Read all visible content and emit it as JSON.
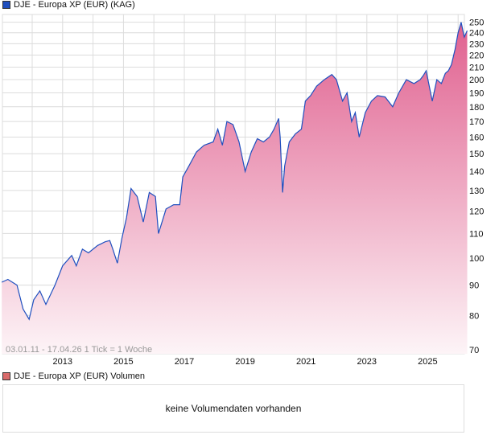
{
  "chart_data": {
    "type": "area",
    "title": "DJE - Europa XP (EUR) (KAG)",
    "series_color": "#1f4fbf",
    "fill_top": "#e0608f",
    "fill_bottom": "#fdf4f7",
    "y_scale": "log",
    "ylim": [
      70,
      255
    ],
    "yticks": [
      70,
      80,
      90,
      100,
      110,
      120,
      130,
      140,
      150,
      160,
      170,
      180,
      190,
      200,
      210,
      220,
      230,
      240,
      250
    ],
    "xlim": [
      2011.0,
      2026.3
    ],
    "xticks": [
      2013,
      2015,
      2017,
      2019,
      2021,
      2023,
      2025
    ],
    "grid": true,
    "range_label": "03.01.11 - 17.04.26   1 Tick = 1 Woche",
    "x": [
      2011.0,
      2011.2,
      2011.5,
      2011.7,
      2011.9,
      2012.05,
      2012.25,
      2012.45,
      2012.75,
      2013.0,
      2013.3,
      2013.45,
      2013.65,
      2013.85,
      2014.15,
      2014.4,
      2014.55,
      2014.65,
      2014.8,
      2014.95,
      2015.1,
      2015.25,
      2015.45,
      2015.65,
      2015.85,
      2016.05,
      2016.15,
      2016.4,
      2016.65,
      2016.85,
      2016.95,
      2017.15,
      2017.4,
      2017.65,
      2017.95,
      2018.1,
      2018.25,
      2018.4,
      2018.6,
      2018.8,
      2019.0,
      2019.2,
      2019.4,
      2019.6,
      2019.8,
      2019.95,
      2020.1,
      2020.15,
      2020.23,
      2020.3,
      2020.45,
      2020.65,
      2020.85,
      2020.98,
      2021.15,
      2021.35,
      2021.6,
      2021.85,
      2022.0,
      2022.2,
      2022.35,
      2022.5,
      2022.62,
      2022.75,
      2022.95,
      2023.15,
      2023.35,
      2023.6,
      2023.85,
      2024.05,
      2024.3,
      2024.55,
      2024.75,
      2024.85,
      2024.95,
      2025.15,
      2025.3,
      2025.45,
      2025.58,
      2025.68,
      2025.78,
      2025.9,
      2026.0,
      2026.1,
      2026.2,
      2026.3
    ],
    "values": [
      91,
      92,
      90,
      82,
      78.8,
      85,
      88,
      83.5,
      90,
      97,
      101,
      97,
      103.5,
      102,
      105,
      106.5,
      107,
      103.5,
      98,
      108,
      117,
      131,
      127,
      115,
      129,
      127,
      110,
      121,
      123,
      123,
      137,
      143,
      151,
      155,
      157,
      165,
      155,
      170,
      168,
      157,
      140,
      151,
      159,
      157,
      160,
      165,
      172,
      160,
      129,
      143,
      157,
      162,
      165,
      184,
      188,
      195,
      200,
      204,
      200,
      184,
      190,
      170,
      176,
      160,
      176,
      184,
      188,
      187,
      180,
      190,
      200,
      197,
      200,
      203,
      207,
      184,
      200,
      197,
      205,
      207,
      212,
      225,
      240,
      250,
      236,
      242
    ],
    "volume_legend": "DJE - Europa XP (EUR) Volumen",
    "volume_color": "#d96b6b",
    "volume_message": "keine Volumendaten vorhanden"
  }
}
